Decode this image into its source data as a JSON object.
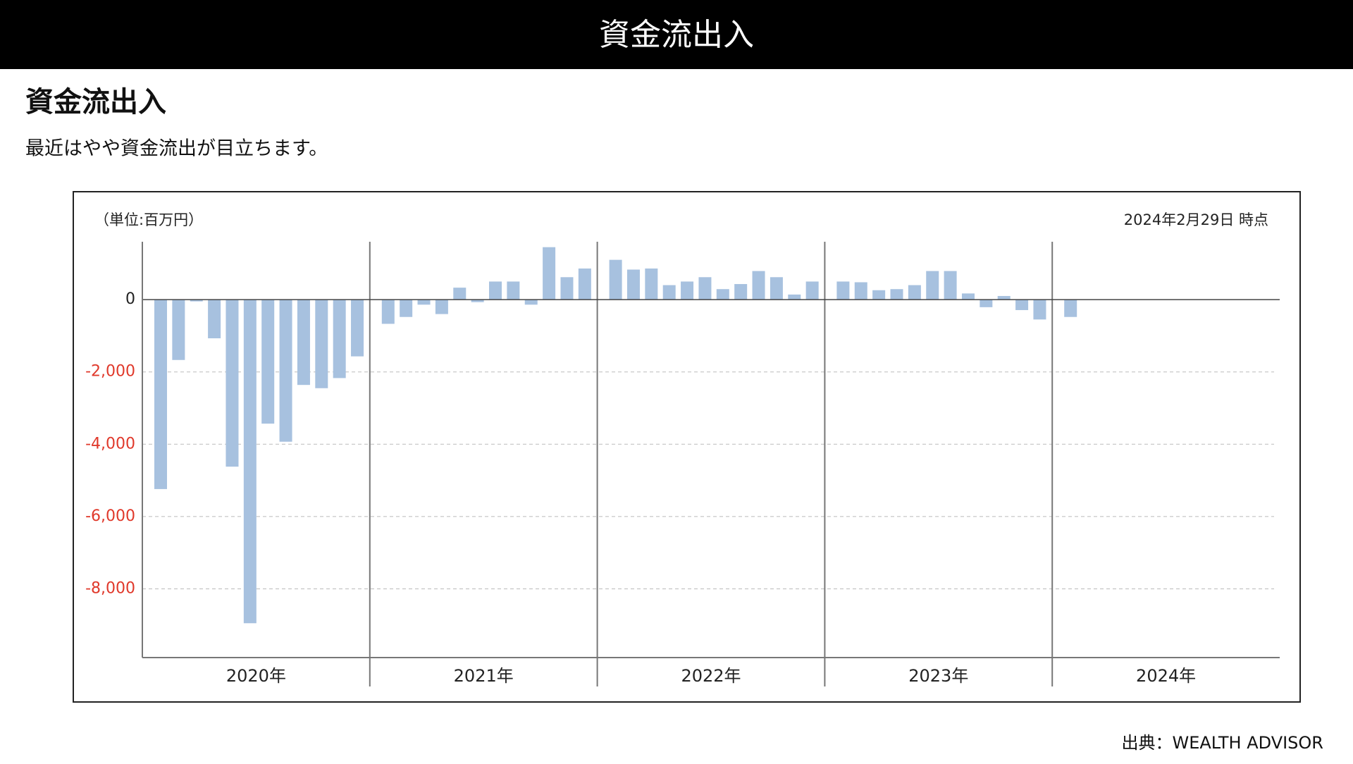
{
  "header": {
    "title": "資金流出入"
  },
  "heading": "資金流出入",
  "description": "最近はやや資金流出が目立ちます。",
  "source": "出典：WEALTH ADVISOR",
  "chart_data": {
    "type": "bar",
    "unit_label": "（単位:百万円）",
    "as_of": "2024年2月29日 時点",
    "color": "#a7c1df",
    "negative_tick_color": "#e0392b",
    "slots_per_group": 12,
    "ylim": [
      -9900,
      1600
    ],
    "yticks": [
      0,
      {
        "value": -2000,
        "label": "-2,000"
      },
      {
        "value": -4000,
        "label": "-4,000"
      },
      {
        "value": -6000,
        "label": "-6,000"
      },
      {
        "value": -8000,
        "label": "-8,000"
      }
    ],
    "grid": true,
    "groups": [
      {
        "label": "2020年",
        "values": [
          -5240,
          -1670,
          -50,
          -1070,
          -4620,
          -8950,
          -3430,
          -3930,
          -2360,
          -2450,
          -2170,
          -1570
        ]
      },
      {
        "label": "2021年",
        "values": [
          -670,
          -480,
          -140,
          -400,
          330,
          -70,
          500,
          500,
          -140,
          1450,
          620,
          860
        ]
      },
      {
        "label": "2022年",
        "values": [
          1100,
          830,
          860,
          400,
          500,
          620,
          290,
          430,
          790,
          620,
          140,
          500
        ]
      },
      {
        "label": "2023年",
        "values": [
          500,
          480,
          260,
          290,
          400,
          790,
          790,
          170,
          -210,
          100,
          -290,
          -550
        ]
      },
      {
        "label": "2024年",
        "values": [
          -480
        ]
      }
    ]
  }
}
